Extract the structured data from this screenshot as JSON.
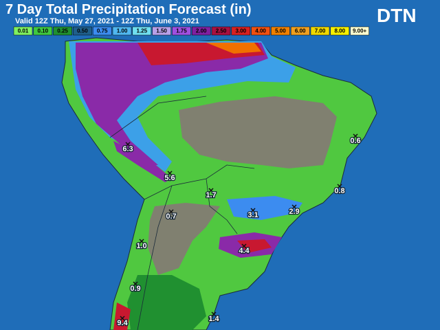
{
  "header": {
    "title": "7 Day Total Precipitation Forecast (in)",
    "subtitle": "Valid 12Z Thu, May 27, 2021 - 12Z Thu, June 3, 2021",
    "logo": "DTN"
  },
  "legend": {
    "items": [
      {
        "label": "0.01",
        "color": "#80f060"
      },
      {
        "label": "0.10",
        "color": "#40c840"
      },
      {
        "label": "0.25",
        "color": "#209030"
      },
      {
        "label": "0.50",
        "color": "#1f5f8a"
      },
      {
        "label": "0.75",
        "color": "#3c8cf0"
      },
      {
        "label": "1.00",
        "color": "#50b8f0"
      },
      {
        "label": "1.25",
        "color": "#70e0f0"
      },
      {
        "label": "1.50",
        "color": "#b8a0e8"
      },
      {
        "label": "1.75",
        "color": "#a050e0"
      },
      {
        "label": "2.00",
        "color": "#8020a0"
      },
      {
        "label": "2.50",
        "color": "#a81040"
      },
      {
        "label": "3.00",
        "color": "#d82020"
      },
      {
        "label": "4.00",
        "color": "#f05010"
      },
      {
        "label": "5.00",
        "color": "#f08000"
      },
      {
        "label": "6.00",
        "color": "#f0a020"
      },
      {
        "label": "7.00",
        "color": "#f0d800"
      },
      {
        "label": "8.00",
        "color": "#f8f000"
      },
      {
        "label": "9.00+",
        "color": "#ffffd0"
      }
    ]
  },
  "points": [
    {
      "label": "6.3"
    },
    {
      "label": "5.6"
    },
    {
      "label": "1.7"
    },
    {
      "label": "0.7"
    },
    {
      "label": "1.0"
    },
    {
      "label": "0.9"
    },
    {
      "label": "9.4"
    },
    {
      "label": "1.4"
    },
    {
      "label": "3.1"
    },
    {
      "label": "2.9"
    },
    {
      "label": "4.4"
    },
    {
      "label": "0.8"
    },
    {
      "label": "0.6"
    }
  ]
}
